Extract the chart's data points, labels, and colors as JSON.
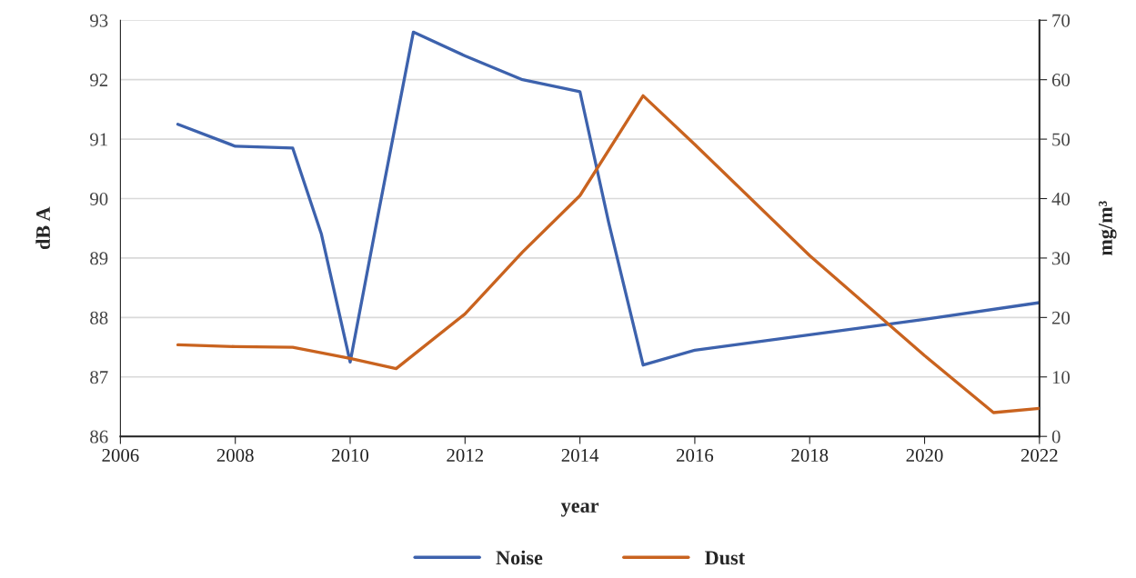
{
  "chart_data": {
    "type": "line",
    "xlabel": "year",
    "ylabel": "dB A",
    "y2label": "mg/m³",
    "series": [
      {
        "name": "Noise",
        "color": "#3d62ad",
        "x": [
          2007,
          2008,
          2009,
          2009.5,
          2010,
          2010.5,
          2011.1,
          2012,
          2013,
          2014,
          2014.5,
          2015.1,
          2016,
          2018,
          2020,
          2022
        ],
        "values": [
          91.25,
          90.88,
          90.85,
          89.4,
          87.25,
          89.8,
          92.8,
          92.4,
          92.0,
          91.8,
          89.6,
          87.2,
          87.45,
          87.71,
          87.97,
          88.25
        ]
      },
      {
        "name": "Dust",
        "color": "#c9631f",
        "axis": "y2",
        "x": [
          2007,
          2008,
          2009,
          2010,
          2010.8,
          2012,
          2013,
          2014,
          2015.1,
          2016,
          2018,
          2020,
          2021.2,
          2022
        ],
        "values": [
          15.4,
          15.1,
          15.0,
          13.1,
          11.4,
          20.6,
          31,
          40.5,
          57.3,
          49.1,
          30.4,
          13.6,
          4,
          4.7
        ]
      }
    ],
    "xlim": [
      2006,
      2022
    ],
    "xticks": [
      2006,
      2008,
      2010,
      2012,
      2014,
      2016,
      2018,
      2020,
      2022
    ],
    "ylim": [
      86,
      93
    ],
    "yticks": [
      86,
      87,
      88,
      89,
      90,
      91,
      92,
      93
    ],
    "y2lim": [
      0,
      70
    ],
    "y2ticks": [
      0,
      10,
      20,
      30,
      40,
      50,
      60,
      70
    ],
    "grid": "y",
    "legend": "bottom",
    "marker": "none",
    "line_style": "solid"
  }
}
